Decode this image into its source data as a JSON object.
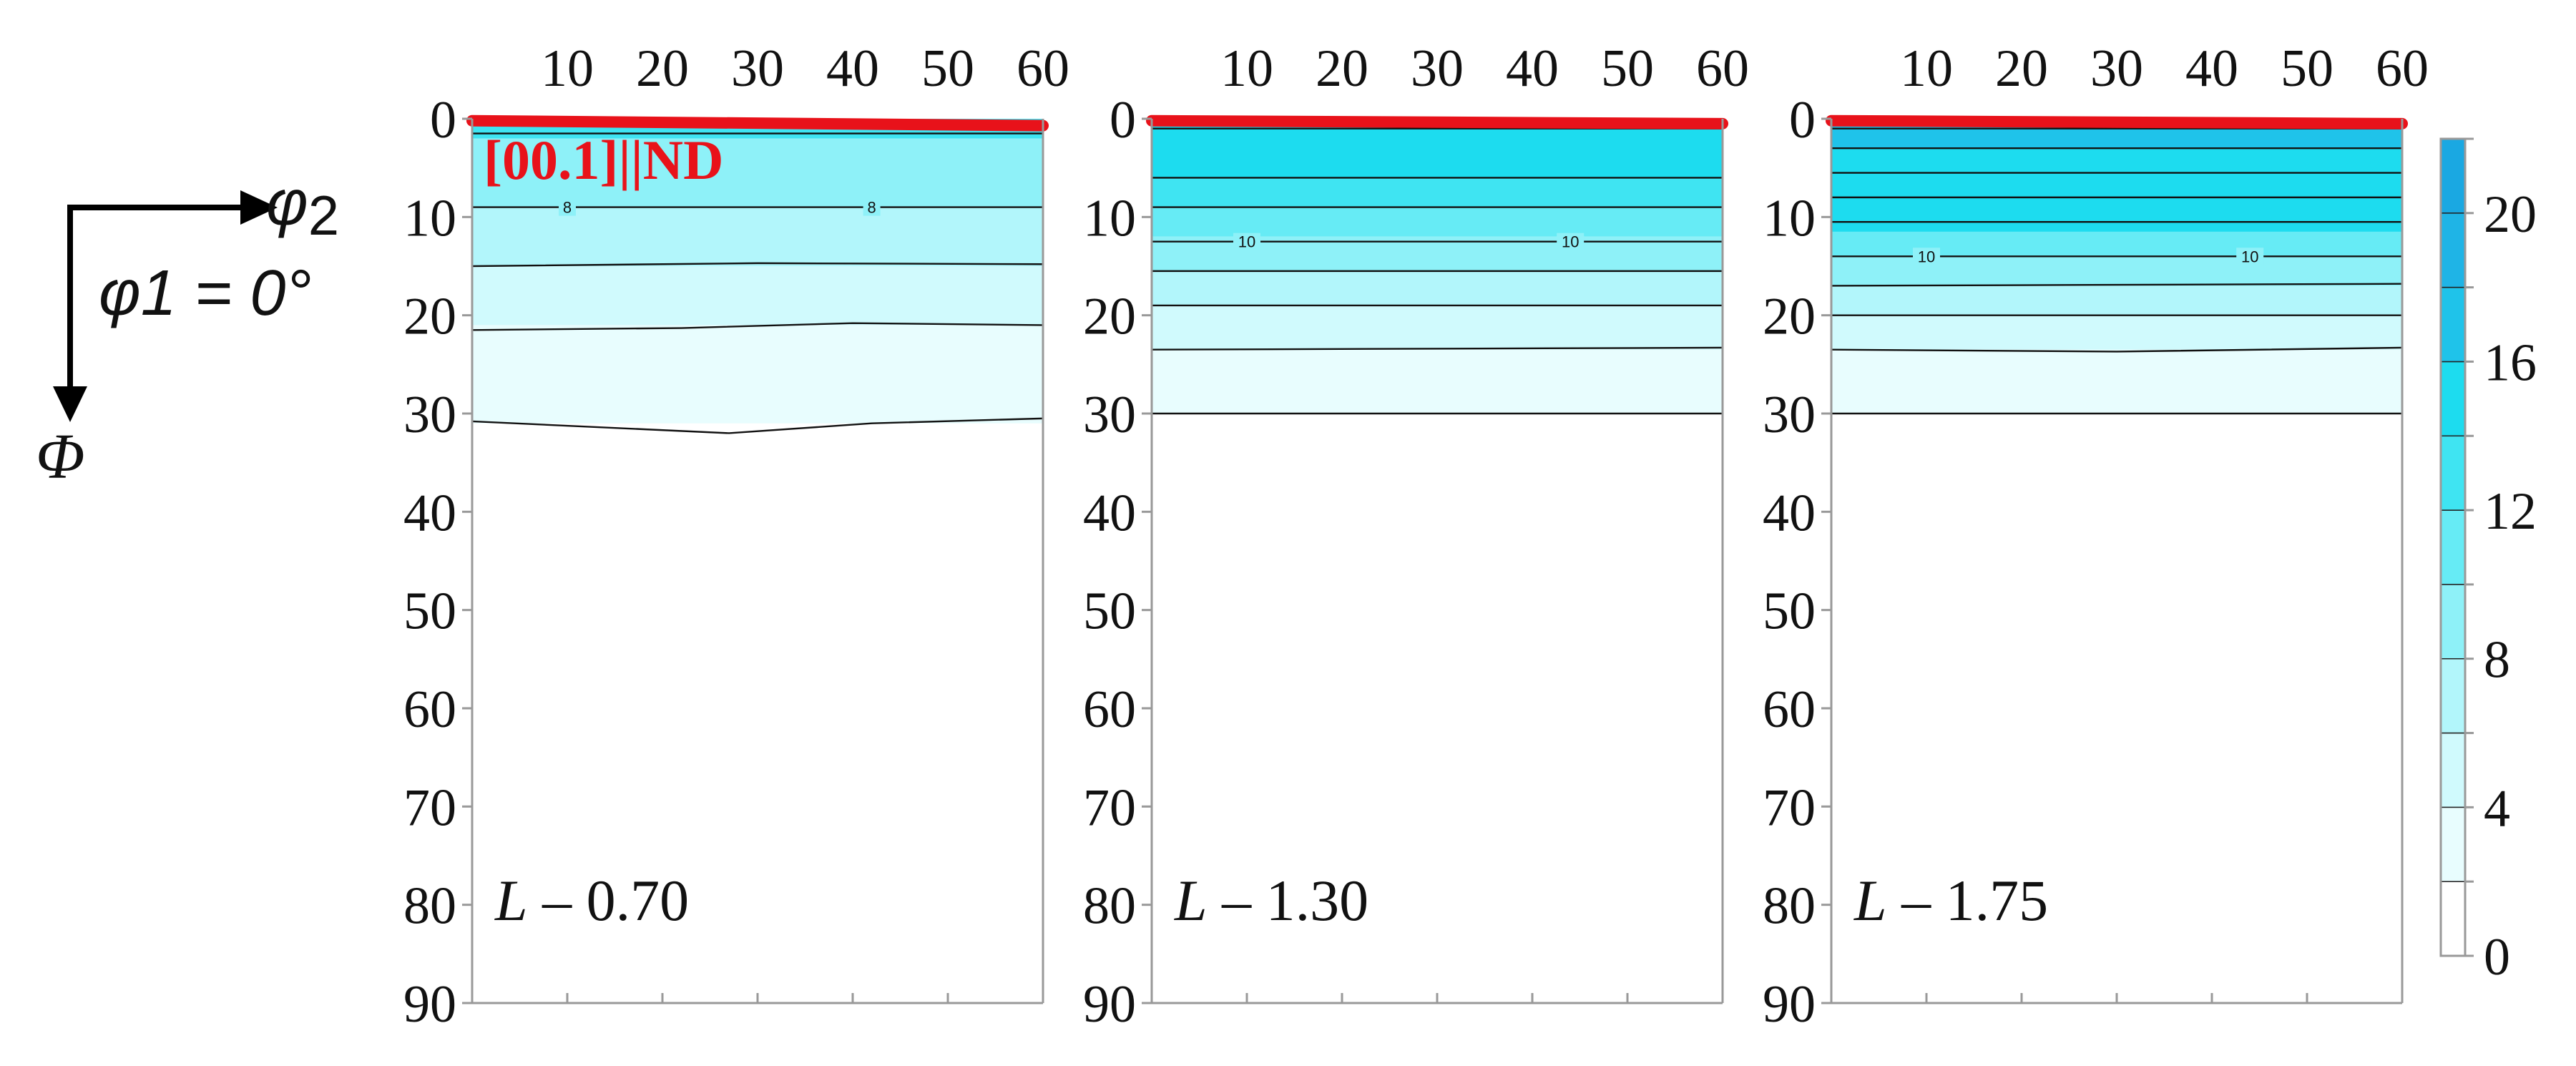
{
  "orientation_axes": {
    "horizontal_label": "φ2",
    "horizontal_subscript": "2",
    "section_label": "φ1 = 0°",
    "vertical_label": "Φ"
  },
  "annotation": "[00.1]||ND",
  "colors": {
    "fill_levels": [
      "#ffffff",
      "#e8fdfe",
      "#d0fafd",
      "#b2f6fb",
      "#8ef1f8",
      "#66ebf5",
      "#3fe4f2",
      "#1ddcef",
      "#1fc3ea",
      "#1fb4e6",
      "#1aa8e2"
    ],
    "isoline": "#111111",
    "fiber_line": "#e8121a",
    "axis": "#999999"
  },
  "chart_data": [
    {
      "type": "heatmap",
      "panel_label": "L – 0.70",
      "x": {
        "ticks": [
          10,
          20,
          30,
          40,
          50,
          60
        ],
        "lim": [
          0,
          60
        ],
        "position": "top"
      },
      "y": {
        "ticks": [
          0,
          10,
          20,
          30,
          40,
          50,
          60,
          70,
          80,
          90
        ],
        "lim": [
          0,
          90
        ],
        "inverted": true
      },
      "fill_bands": [
        {
          "from": 0,
          "to": 2,
          "level": 6
        },
        {
          "from": 2,
          "to": 9,
          "level": 4
        },
        {
          "from": 9,
          "to": 15,
          "level": 3
        },
        {
          "from": 15,
          "to": 21,
          "level": 2
        },
        {
          "from": 21,
          "to": 31,
          "level": 1
        }
      ],
      "contour_lines": [
        {
          "x": [
            0,
            60
          ],
          "y": [
            1.5,
            1.5
          ]
        },
        {
          "x": [
            0,
            30,
            60
          ],
          "y": [
            9,
            9,
            9
          ]
        },
        {
          "x": [
            0,
            30,
            60
          ],
          "y": [
            15,
            14.7,
            14.8
          ]
        },
        {
          "x": [
            0,
            22,
            40,
            60
          ],
          "y": [
            21.5,
            21.3,
            20.8,
            21
          ]
        },
        {
          "x": [
            0,
            27,
            42,
            60
          ],
          "y": [
            30.8,
            32,
            31,
            30.5
          ]
        }
      ],
      "contour_labels": [
        {
          "text": "8",
          "x": 10,
          "y": 9
        },
        {
          "text": "8",
          "x": 42,
          "y": 9
        }
      ],
      "fiber_line": {
        "x": [
          0,
          60
        ],
        "y": [
          0.2,
          0.7
        ]
      }
    },
    {
      "type": "heatmap",
      "panel_label": "L – 1.30",
      "x": {
        "ticks": [
          10,
          20,
          30,
          40,
          50,
          60
        ],
        "lim": [
          0,
          60
        ],
        "position": "top"
      },
      "y": {
        "ticks": [
          0,
          10,
          20,
          30,
          40,
          50,
          60,
          70,
          80,
          90
        ],
        "lim": [
          0,
          90
        ],
        "inverted": true
      },
      "fill_bands": [
        {
          "from": 0,
          "to": 6,
          "level": 7
        },
        {
          "from": 6,
          "to": 9,
          "level": 6
        },
        {
          "from": 9,
          "to": 12,
          "level": 5
        },
        {
          "from": 12,
          "to": 15.5,
          "level": 4
        },
        {
          "from": 15.5,
          "to": 19,
          "level": 3
        },
        {
          "from": 19,
          "to": 23.5,
          "level": 2
        },
        {
          "from": 23.5,
          "to": 30,
          "level": 1
        }
      ],
      "contour_lines": [
        {
          "x": [
            0,
            60
          ],
          "y": [
            1,
            1
          ]
        },
        {
          "x": [
            0,
            60
          ],
          "y": [
            6,
            6
          ]
        },
        {
          "x": [
            0,
            60
          ],
          "y": [
            9,
            9
          ]
        },
        {
          "x": [
            0,
            60
          ],
          "y": [
            12.5,
            12.5
          ]
        },
        {
          "x": [
            0,
            60
          ],
          "y": [
            15.5,
            15.5
          ]
        },
        {
          "x": [
            0,
            60
          ],
          "y": [
            19,
            19
          ]
        },
        {
          "x": [
            0,
            60
          ],
          "y": [
            23.5,
            23.3
          ]
        },
        {
          "x": [
            0,
            60
          ],
          "y": [
            30,
            30
          ]
        }
      ],
      "contour_labels": [
        {
          "text": "10",
          "x": 10,
          "y": 12.5
        },
        {
          "text": "10",
          "x": 44,
          "y": 12.5
        }
      ],
      "fiber_line": {
        "x": [
          0,
          60
        ],
        "y": [
          0.2,
          0.5
        ]
      }
    },
    {
      "type": "heatmap",
      "panel_label": "L – 1.75",
      "x": {
        "ticks": [
          10,
          20,
          30,
          40,
          50,
          60
        ],
        "lim": [
          0,
          60
        ],
        "position": "top"
      },
      "y": {
        "ticks": [
          0,
          10,
          20,
          30,
          40,
          50,
          60,
          70,
          80,
          90
        ],
        "lim": [
          0,
          90
        ],
        "inverted": true
      },
      "fill_bands": [
        {
          "from": 0,
          "to": 3,
          "level": 8
        },
        {
          "from": 3,
          "to": 11.5,
          "level": 7
        },
        {
          "from": 11.5,
          "to": 14,
          "level": 5
        },
        {
          "from": 14,
          "to": 17,
          "level": 4
        },
        {
          "from": 17,
          "to": 20,
          "level": 3
        },
        {
          "from": 20,
          "to": 23.5,
          "level": 2
        },
        {
          "from": 23.5,
          "to": 30,
          "level": 1
        }
      ],
      "contour_lines": [
        {
          "x": [
            0,
            60
          ],
          "y": [
            1,
            1
          ]
        },
        {
          "x": [
            0,
            60
          ],
          "y": [
            3,
            3
          ]
        },
        {
          "x": [
            0,
            60
          ],
          "y": [
            5.5,
            5.5
          ]
        },
        {
          "x": [
            0,
            60
          ],
          "y": [
            8,
            8
          ]
        },
        {
          "x": [
            0,
            60
          ],
          "y": [
            10.5,
            10.5
          ]
        },
        {
          "x": [
            0,
            60
          ],
          "y": [
            14,
            14
          ]
        },
        {
          "x": [
            0,
            60
          ],
          "y": [
            17,
            16.8
          ]
        },
        {
          "x": [
            0,
            60
          ],
          "y": [
            20,
            20
          ]
        },
        {
          "x": [
            0,
            30,
            60
          ],
          "y": [
            23.5,
            23.7,
            23.3
          ]
        },
        {
          "x": [
            0,
            60
          ],
          "y": [
            30,
            30
          ]
        }
      ],
      "contour_labels": [
        {
          "text": "10",
          "x": 10,
          "y": 14
        },
        {
          "text": "10",
          "x": 44,
          "y": 14
        }
      ],
      "fiber_line": {
        "x": [
          0,
          60
        ],
        "y": [
          0.2,
          0.5
        ]
      }
    },
    {
      "type": "colorbar",
      "levels": [
        0,
        2,
        4,
        6,
        8,
        10,
        12,
        14,
        16,
        18,
        20,
        22
      ],
      "tick_labels": [
        0,
        4,
        8,
        12,
        16,
        20
      ],
      "lim": [
        0,
        22
      ]
    }
  ]
}
